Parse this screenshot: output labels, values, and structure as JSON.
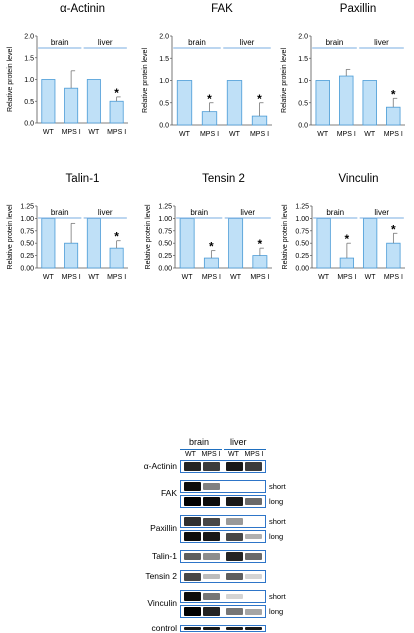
{
  "chart_data": [
    {
      "type": "bar",
      "title": "α-Actinin",
      "ylabel": "Relative protein level",
      "ylim": [
        0,
        2.0
      ],
      "yticks": [
        "0.0",
        "0.5",
        "1.0",
        "1.5",
        "2.0"
      ],
      "groups": [
        "brain",
        "liver"
      ],
      "categories": [
        "WT",
        "MPS I",
        "WT",
        "MPS I"
      ],
      "values": [
        1.0,
        0.8,
        1.0,
        0.5
      ],
      "errors": [
        0,
        0.4,
        0,
        0.1
      ],
      "significant": [
        false,
        false,
        false,
        true
      ]
    },
    {
      "type": "bar",
      "title": "FAK",
      "ylabel": "Relative protein level",
      "ylim": [
        0,
        2.0
      ],
      "yticks": [
        "0.0",
        "0.5",
        "1.0",
        "1.5",
        "2.0"
      ],
      "groups": [
        "brain",
        "liver"
      ],
      "categories": [
        "WT",
        "MPS I",
        "WT",
        "MPS I"
      ],
      "values": [
        1.0,
        0.3,
        1.0,
        0.2
      ],
      "errors": [
        0,
        0.2,
        0,
        0.3
      ],
      "significant": [
        false,
        true,
        false,
        true
      ]
    },
    {
      "type": "bar",
      "title": "Paxillin",
      "ylabel": "Relative protein level",
      "ylim": [
        0,
        2.0
      ],
      "yticks": [
        "0.0",
        "0.5",
        "1.0",
        "1.5",
        "2.0"
      ],
      "groups": [
        "brain",
        "liver"
      ],
      "categories": [
        "WT",
        "MPS I",
        "WT",
        "MPS I"
      ],
      "values": [
        1.0,
        1.1,
        1.0,
        0.4
      ],
      "errors": [
        0,
        0.15,
        0,
        0.2
      ],
      "significant": [
        false,
        false,
        false,
        true
      ]
    },
    {
      "type": "bar",
      "title": "Talin-1",
      "ylabel": "Relative protein level",
      "ylim": [
        0,
        1.25
      ],
      "yticks": [
        "0.00",
        "0.25",
        "0.50",
        "0.75",
        "1.00",
        "1.25"
      ],
      "groups": [
        "brain",
        "liver"
      ],
      "categories": [
        "WT",
        "MPS I",
        "WT",
        "MPS I"
      ],
      "values": [
        1.0,
        0.5,
        1.0,
        0.4
      ],
      "errors": [
        0,
        0.4,
        0,
        0.15
      ],
      "significant": [
        false,
        false,
        false,
        true
      ]
    },
    {
      "type": "bar",
      "title": "Tensin 2",
      "ylabel": "Relative protein level",
      "ylim": [
        0,
        1.25
      ],
      "yticks": [
        "0.00",
        "0.25",
        "0.50",
        "0.75",
        "1.00",
        "1.25"
      ],
      "groups": [
        "brain",
        "liver"
      ],
      "categories": [
        "WT",
        "MPS I",
        "WT",
        "MPS I"
      ],
      "values": [
        1.0,
        0.2,
        1.0,
        0.25
      ],
      "errors": [
        0,
        0.15,
        0,
        0.15
      ],
      "significant": [
        false,
        true,
        false,
        true
      ]
    },
    {
      "type": "bar",
      "title": "Vinculin",
      "ylabel": "Relative protein level",
      "ylim": [
        0,
        1.25
      ],
      "yticks": [
        "0.00",
        "0.25",
        "0.50",
        "0.75",
        "1.00",
        "1.25"
      ],
      "groups": [
        "brain",
        "liver"
      ],
      "categories": [
        "WT",
        "MPS I",
        "WT",
        "MPS I"
      ],
      "values": [
        1.0,
        0.2,
        1.0,
        0.5
      ],
      "errors": [
        0,
        0.3,
        0,
        0.2
      ],
      "significant": [
        false,
        true,
        false,
        true
      ]
    }
  ],
  "colors": {
    "bar_fill": "#bfe0f7",
    "bar_stroke": "#4a9bd6",
    "group_line": "#7aaee0",
    "panel_border": "#2e75c8"
  },
  "significance_marker": "*",
  "blot": {
    "groups": [
      "brain",
      "liver"
    ],
    "lanes": [
      "WT",
      "MPS I",
      "WT",
      "MPS I"
    ],
    "rows": [
      {
        "label": "α-Actinin",
        "exposures": [
          {
            "label": "",
            "intensity": [
              0.85,
              0.75,
              0.9,
              0.75
            ]
          }
        ]
      },
      {
        "label": "FAK",
        "exposures": [
          {
            "label": "short",
            "intensity": [
              0.95,
              0.45,
              0.0,
              0.0
            ]
          },
          {
            "label": "long",
            "intensity": [
              1.0,
              0.95,
              0.9,
              0.55
            ]
          }
        ]
      },
      {
        "label": "Paxillin",
        "exposures": [
          {
            "label": "short",
            "intensity": [
              0.8,
              0.7,
              0.35,
              0.0
            ]
          },
          {
            "label": "long",
            "intensity": [
              0.95,
              0.9,
              0.7,
              0.25
            ]
          }
        ]
      },
      {
        "label": "Talin-1",
        "exposures": [
          {
            "label": "",
            "intensity": [
              0.6,
              0.4,
              0.85,
              0.55
            ]
          }
        ]
      },
      {
        "label": "Tensin 2",
        "exposures": [
          {
            "label": "",
            "intensity": [
              0.7,
              0.2,
              0.6,
              0.1
            ]
          }
        ]
      },
      {
        "label": "Vinculin",
        "exposures": [
          {
            "label": "short",
            "intensity": [
              0.95,
              0.5,
              0.1,
              0.0
            ]
          },
          {
            "label": "long",
            "intensity": [
              1.0,
              0.85,
              0.5,
              0.3
            ]
          }
        ]
      },
      {
        "label": "control",
        "exposures": [
          {
            "label": "",
            "intensity": [
              0.9,
              0.9,
              0.9,
              0.9
            ]
          }
        ]
      }
    ]
  }
}
